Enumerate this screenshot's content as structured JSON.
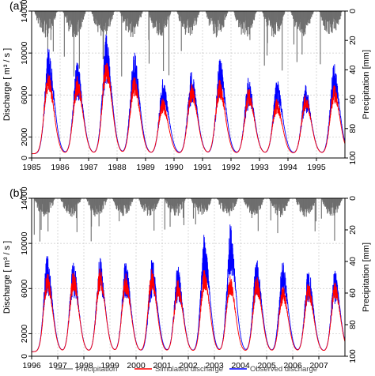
{
  "legend": {
    "precipitation": "Precipitation",
    "simulated": "Simulated discharge",
    "observed": "Observed discharge"
  },
  "colors": {
    "precipitation": "#6e6e6e",
    "simulated": "#ff0000",
    "observed": "#0000ff",
    "grid": "#c8c8c8"
  },
  "chart_data": [
    {
      "type": "line",
      "panel_label": "(a)",
      "ylabel": "Discharge [ m³ / s ]",
      "y2label": "Precipitation [mm]",
      "xlim": [
        1985,
        1996
      ],
      "ylim": [
        0,
        14000
      ],
      "y2lim": [
        100,
        0
      ],
      "xticks": [
        "1985",
        "1986",
        "1987",
        "1988",
        "1989",
        "1990",
        "1991",
        "1992",
        "1993",
        "1994",
        "1995"
      ],
      "yticks": [
        0,
        2000,
        6000,
        10000,
        14000
      ],
      "y2ticks": [
        100,
        80,
        60,
        40,
        20,
        0
      ],
      "grid": true,
      "legend_position": "bottom",
      "series": [
        {
          "name": "Simulated discharge",
          "peaks": [
            [
              1985.58,
              7200
            ],
            [
              1986.6,
              6800
            ],
            [
              1987.62,
              8400
            ],
            [
              1988.6,
              6900
            ],
            [
              1989.6,
              5000
            ],
            [
              1990.62,
              6200
            ],
            [
              1991.6,
              6500
            ],
            [
              1992.62,
              5800
            ],
            [
              1993.6,
              4900
            ],
            [
              1994.62,
              5300
            ],
            [
              1995.62,
              6100
            ]
          ]
        },
        {
          "name": "Observed discharge",
          "peaks": [
            [
              1985.6,
              8500
            ],
            [
              1986.6,
              7400
            ],
            [
              1987.62,
              9400
            ],
            [
              1988.6,
              8200
            ],
            [
              1989.62,
              6100
            ],
            [
              1990.62,
              6800
            ],
            [
              1991.62,
              7600
            ],
            [
              1992.62,
              6200
            ],
            [
              1993.62,
              6000
            ],
            [
              1994.62,
              5600
            ],
            [
              1995.62,
              7200
            ]
          ]
        },
        {
          "name": "Precipitation",
          "units": "mm",
          "wet_seasons": [
            [
              1985.1,
              1985.9
            ],
            [
              1986.1,
              1986.9
            ],
            [
              1987.1,
              1987.9
            ],
            [
              1988.1,
              1988.9
            ],
            [
              1989.1,
              1989.9
            ],
            [
              1990.1,
              1990.9
            ],
            [
              1991.1,
              1991.9
            ],
            [
              1992.1,
              1992.9
            ],
            [
              1993.1,
              1993.9
            ],
            [
              1994.1,
              1994.9
            ],
            [
              1995.1,
              1995.9
            ]
          ],
          "max_daily_mm": 45
        }
      ]
    },
    {
      "type": "line",
      "panel_label": "(b)",
      "ylabel": "Discharge [ m³ / s ]",
      "y2label": "Precipitation [mm]",
      "xlim": [
        1996,
        2008
      ],
      "ylim": [
        0,
        14000
      ],
      "y2lim": [
        100,
        0
      ],
      "xticks": [
        "1996",
        "1997",
        "1998",
        "1999",
        "2000",
        "2001",
        "2002",
        "2003",
        "2004",
        "2005",
        "2006",
        "2007"
      ],
      "yticks": [
        0,
        2000,
        6000,
        10000,
        14000
      ],
      "y2ticks": [
        100,
        80,
        60,
        40,
        20,
        0
      ],
      "grid": true,
      "legend_position": "bottom",
      "series": [
        {
          "name": "Simulated discharge",
          "peaks": [
            [
              1996.6,
              6500
            ],
            [
              1997.6,
              6600
            ],
            [
              1998.62,
              6800
            ],
            [
              1999.6,
              6400
            ],
            [
              2000.6,
              6700
            ],
            [
              2001.6,
              5900
            ],
            [
              2002.62,
              6800
            ],
            [
              2003.6,
              6400
            ],
            [
              2004.62,
              6200
            ],
            [
              2005.62,
              5500
            ],
            [
              2006.6,
              5700
            ],
            [
              2007.62,
              5800
            ]
          ]
        },
        {
          "name": "Observed discharge",
          "peaks": [
            [
              1996.6,
              7200
            ],
            [
              1997.6,
              6900
            ],
            [
              1998.62,
              7000
            ],
            [
              1999.6,
              6900
            ],
            [
              2000.62,
              7000
            ],
            [
              2001.6,
              6400
            ],
            [
              2002.62,
              8800
            ],
            [
              2003.62,
              9400
            ],
            [
              2004.62,
              7100
            ],
            [
              2005.62,
              7000
            ],
            [
              2006.6,
              6300
            ],
            [
              2007.62,
              6200
            ]
          ]
        },
        {
          "name": "Precipitation",
          "units": "mm",
          "wet_seasons": [
            [
              1996.1,
              1996.9
            ],
            [
              1997.1,
              1997.9
            ],
            [
              1998.1,
              1998.9
            ],
            [
              1999.1,
              1999.9
            ],
            [
              2000.1,
              2000.9
            ],
            [
              2001.1,
              2001.9
            ],
            [
              2002.1,
              2002.9
            ],
            [
              2003.1,
              2003.9
            ],
            [
              2004.1,
              2004.9
            ],
            [
              2005.1,
              2005.9
            ],
            [
              2006.1,
              2006.9
            ],
            [
              2007.1,
              2007.9
            ]
          ],
          "max_daily_mm": 30
        }
      ]
    }
  ]
}
